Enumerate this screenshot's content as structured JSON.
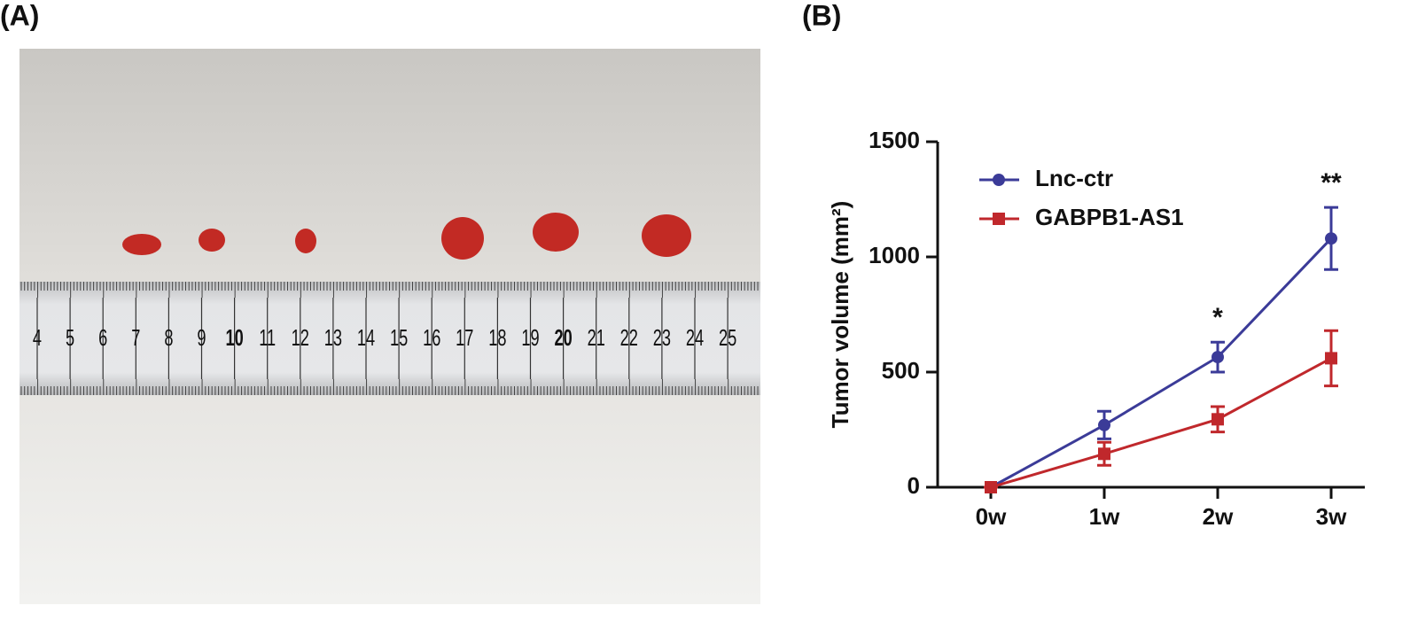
{
  "panel_labels": [
    "(A)",
    "(B)"
  ],
  "photo": {
    "ruler_labels": [
      "4",
      "5",
      "6",
      "7",
      "8",
      "9",
      "10",
      "11",
      "12",
      "13",
      "14",
      "15",
      "16",
      "17",
      "18",
      "19",
      "20",
      "21",
      "22",
      "23",
      "24",
      "25"
    ]
  },
  "chart_data": {
    "type": "line",
    "y_label": "Tumor volume (mm²)",
    "categories": [
      "0w",
      "1w",
      "2w",
      "3w"
    ],
    "series": [
      {
        "name": "Lnc-ctr",
        "color": "#3b3b98",
        "marker": "circle",
        "values": [
          0,
          270,
          565,
          1080
        ],
        "errors": [
          0,
          60,
          65,
          135
        ]
      },
      {
        "name": "GABPB1-AS1",
        "color": "#c0282c",
        "marker": "square",
        "values": [
          0,
          145,
          295,
          560
        ],
        "errors": [
          0,
          50,
          55,
          120
        ]
      }
    ],
    "annotations": [
      {
        "text": "*",
        "x": "2w"
      },
      {
        "text": "**",
        "x": "3w"
      }
    ],
    "ylim": [
      0,
      1500
    ],
    "yticks": [
      0,
      500,
      1000,
      1500
    ],
    "grid": false,
    "legend": "upper left"
  }
}
